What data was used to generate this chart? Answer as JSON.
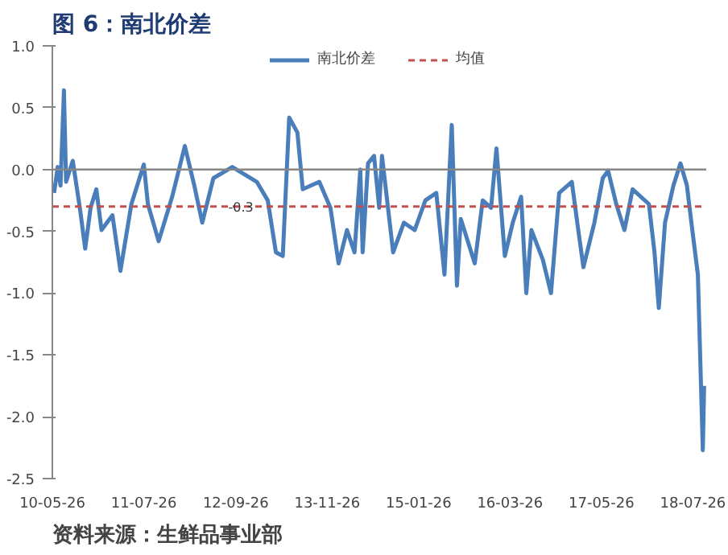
{
  "chart_data": {
    "type": "line",
    "title": "图 6：南北价差",
    "annotations": [
      "资料来源：生鲜品事业部",
      {
        "text": "-0.3",
        "x": "2012-10-20",
        "y": -0.3
      }
    ],
    "xlim": [
      "2010-05-26",
      "2018-09-26"
    ],
    "xticks": [
      {
        "value": "2010-05-26",
        "label": "10-05-26"
      },
      {
        "value": "2011-07-26",
        "label": "11-07-26"
      },
      {
        "value": "2012-09-26",
        "label": "12-09-26"
      },
      {
        "value": "2013-11-26",
        "label": "13-11-26"
      },
      {
        "value": "2015-01-26",
        "label": "15-01-26"
      },
      {
        "value": "2016-03-26",
        "label": "16-03-26"
      },
      {
        "value": "2017-05-26",
        "label": "17-05-26"
      },
      {
        "value": "2018-07-26",
        "label": "18-07-26"
      }
    ],
    "ylim": [
      -2.5,
      1.0
    ],
    "yticks": [
      {
        "value": -2.5,
        "label": "-2.5"
      },
      {
        "value": -2.0,
        "label": "-2.0"
      },
      {
        "value": -1.5,
        "label": "-1.5"
      },
      {
        "value": -1.0,
        "label": "-1.0"
      },
      {
        "value": -0.5,
        "label": "-0.5"
      },
      {
        "value": 0.0,
        "label": "0.0"
      },
      {
        "value": 0.5,
        "label": "0.5"
      },
      {
        "value": 1.0,
        "label": "1.0"
      }
    ],
    "grid": false,
    "legend": "top",
    "marker": "none",
    "line_style": "solid",
    "x": [
      "2010-06-03",
      "2010-06-20",
      "2010-07-03",
      "2010-07-19",
      "2010-07-29",
      "2010-08-29",
      "2010-10-01",
      "2010-10-26",
      "2010-11-20",
      "2010-12-17",
      "2011-01-10",
      "2011-03-02",
      "2011-04-08",
      "2011-05-29",
      "2011-07-26",
      "2011-08-14",
      "2011-10-03",
      "2011-12-05",
      "2012-02-02",
      "2012-03-17",
      "2012-04-23",
      "2012-06-14",
      "2012-09-10",
      "2013-01-02",
      "2013-02-22",
      "2013-04-01",
      "2013-05-03",
      "2013-06-02",
      "2013-07-10",
      "2013-08-04",
      "2013-10-20",
      "2013-12-11",
      "2014-01-18",
      "2014-02-26",
      "2014-04-02",
      "2014-04-29",
      "2014-05-10",
      "2014-06-04",
      "2014-07-02",
      "2014-07-26",
      "2014-08-08",
      "2014-09-29",
      "2014-11-18",
      "2015-01-07",
      "2015-02-26",
      "2015-04-18",
      "2015-05-26",
      "2015-06-29",
      "2015-07-23",
      "2015-08-10",
      "2015-10-14",
      "2015-11-20",
      "2015-12-29",
      "2016-01-23",
      "2016-03-02",
      "2016-04-08",
      "2016-05-17",
      "2016-06-10",
      "2016-07-04",
      "2016-08-26",
      "2016-10-03",
      "2016-11-10",
      "2017-01-08",
      "2017-02-07",
      "2017-03-03",
      "2017-04-23",
      "2017-06-01",
      "2017-06-26",
      "2017-08-03",
      "2017-09-10",
      "2017-10-18",
      "2018-01-02",
      "2018-01-28",
      "2018-02-17",
      "2018-03-18",
      "2018-04-26",
      "2018-05-29",
      "2018-06-28",
      "2018-07-23",
      "2018-08-18",
      "2018-09-10",
      "2018-09-16"
    ],
    "series": [
      {
        "name": "南北价差",
        "color": "#4a7ebb",
        "values": [
          -0.19,
          0.02,
          -0.13,
          0.64,
          -0.1,
          0.07,
          -0.31,
          -0.64,
          -0.31,
          -0.16,
          -0.49,
          -0.37,
          -0.82,
          -0.28,
          0.04,
          -0.28,
          -0.58,
          -0.22,
          0.19,
          -0.13,
          -0.43,
          -0.07,
          0.02,
          -0.1,
          -0.25,
          -0.67,
          -0.7,
          0.42,
          0.3,
          -0.16,
          -0.1,
          -0.31,
          -0.76,
          -0.49,
          -0.67,
          0.0,
          -0.67,
          0.05,
          0.11,
          -0.31,
          0.11,
          -0.67,
          -0.43,
          -0.49,
          -0.25,
          -0.19,
          -0.85,
          0.36,
          -0.94,
          -0.4,
          -0.76,
          -0.25,
          -0.31,
          0.17,
          -0.7,
          -0.43,
          -0.22,
          -1.0,
          -0.49,
          -0.73,
          -1.0,
          -0.19,
          -0.1,
          -0.49,
          -0.79,
          -0.43,
          -0.07,
          -0.01,
          -0.28,
          -0.49,
          -0.16,
          -0.28,
          -0.67,
          -1.12,
          -0.43,
          -0.13,
          0.05,
          -0.13,
          -0.49,
          -0.85,
          -2.27,
          -1.75
        ]
      },
      {
        "name": "均值",
        "color": "#c0504d",
        "type": "line",
        "line_style": "dashed",
        "x": [
          "2010-05-26",
          "2018-09-16"
        ],
        "values": [
          -0.3,
          -0.3
        ]
      }
    ],
    "ref_lines": [
      {
        "axis": "y",
        "value": 0.0,
        "color": "#868686",
        "line_style": "solid"
      }
    ]
  }
}
